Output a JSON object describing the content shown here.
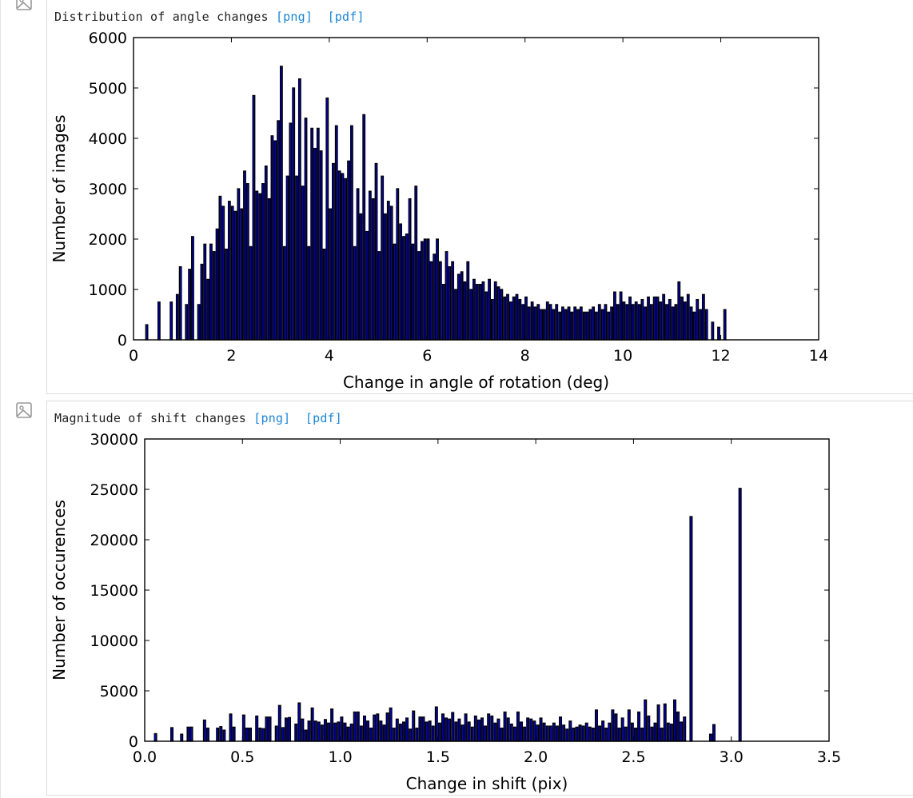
{
  "figures": [
    {
      "caption": "Distribution of angle changes",
      "links": [
        "[png]",
        "[pdf]"
      ]
    },
    {
      "caption": "Magnitude of shift changes",
      "links": [
        "[png]",
        "[pdf]"
      ]
    }
  ],
  "icons": [
    "image-icon",
    "image-icon"
  ],
  "colors": {
    "bar_fill": "#0000cc",
    "bar_edge": "#000000",
    "link": "#1a85d6"
  },
  "chart_data": [
    {
      "type": "bar",
      "title": "",
      "xlabel": "Change in angle of rotation (deg)",
      "ylabel": "Number of images",
      "xlim": [
        0,
        14
      ],
      "ylim": [
        0,
        6000
      ],
      "xticks": [
        0,
        2,
        4,
        6,
        8,
        10,
        12,
        14
      ],
      "yticks": [
        0,
        1000,
        2000,
        3000,
        4000,
        5000,
        6000
      ],
      "bins": {
        "x_start": 0.25,
        "bin_width": 0.0625,
        "values": [
          300,
          0,
          0,
          0,
          750,
          0,
          0,
          0,
          750,
          0,
          900,
          1450,
          0,
          700,
          1400,
          2050,
          0,
          700,
          1500,
          1900,
          1200,
          1900,
          1750,
          2200,
          2850,
          2650,
          1800,
          2750,
          2650,
          2550,
          3000,
          2600,
          3350,
          3100,
          1850,
          4850,
          2950,
          2900,
          3100,
          3450,
          2800,
          4050,
          3950,
          4350,
          5430,
          1850,
          3250,
          4300,
          5000,
          3250,
          5180,
          3050,
          4400,
          1850,
          4200,
          3800,
          4200,
          3750,
          1800,
          4800,
          2600,
          3500,
          4250,
          3350,
          3300,
          3200,
          3550,
          4250,
          1850,
          3000,
          2500,
          4470,
          2150,
          2950,
          2800,
          3500,
          1750,
          3250,
          2500,
          2750,
          2650,
          1900,
          3000,
          2300,
          2050,
          2100,
          2800,
          1900,
          3050,
          1750,
          1950,
          2000,
          2000,
          1550,
          1700,
          2000,
          1550,
          1100,
          1750,
          1450,
          1550,
          1000,
          1300,
          1350,
          1150,
          1550,
          1000,
          1200,
          1100,
          1100,
          1150,
          950,
          1200,
          800,
          1150,
          1050,
          1000,
          850,
          900,
          750,
          850,
          900,
          800,
          700,
          850,
          650,
          750,
          650,
          700,
          600,
          600,
          750,
          700,
          600,
          700,
          550,
          650,
          600,
          650,
          550,
          650,
          600,
          650,
          550,
          550,
          600,
          650,
          550,
          700,
          600,
          700,
          550,
          650,
          950,
          700,
          950,
          750,
          700,
          850,
          700,
          750,
          700,
          800,
          650,
          850,
          700,
          850,
          850,
          750,
          900,
          700,
          800,
          650,
          700,
          1150,
          850,
          750,
          900,
          650,
          550,
          800,
          600,
          900,
          600,
          0,
          350,
          0,
          250,
          0,
          600
        ]
      }
    },
    {
      "type": "bar",
      "title": "",
      "xlabel": "Change in shift (pix)",
      "ylabel": "Number of occurences",
      "xlim": [
        0.0,
        3.5
      ],
      "ylim": [
        0,
        30000
      ],
      "xticks": [
        0.0,
        0.5,
        1.0,
        1.5,
        2.0,
        2.5,
        3.0,
        3.5
      ],
      "xtick_labels": [
        "0.0",
        "0.5",
        "1.0",
        "1.5",
        "2.0",
        "2.5",
        "3.0",
        "3.5"
      ],
      "yticks": [
        0,
        5000,
        10000,
        15000,
        20000,
        25000,
        30000
      ],
      "bins": {
        "x_start": 0.05,
        "bin_width": 0.0167,
        "values": [
          750,
          0,
          0,
          0,
          0,
          1350,
          0,
          0,
          700,
          0,
          1400,
          1400,
          0,
          0,
          0,
          2100,
          1300,
          0,
          0,
          1300,
          1450,
          1100,
          0,
          2700,
          1400,
          0,
          0,
          2600,
          1300,
          1300,
          0,
          2500,
          1300,
          1250,
          2400,
          2400,
          0,
          1500,
          3550,
          1350,
          2300,
          2350,
          0,
          1700,
          3800,
          2200,
          1100,
          2000,
          3300,
          2000,
          1900,
          1600,
          2150,
          1800,
          3200,
          1800,
          1900,
          2400,
          1800,
          1400,
          1700,
          2900,
          2900,
          1500,
          2500,
          2000,
          1300,
          2600,
          2700,
          2000,
          1600,
          2800,
          3300,
          1300,
          2200,
          1700,
          1900,
          2300,
          1200,
          3000,
          1300,
          2400,
          2400,
          1900,
          2000,
          1500,
          3400,
          1800,
          2700,
          2300,
          2200,
          2850,
          1900,
          2200,
          1600,
          2700,
          1900,
          1400,
          2500,
          2100,
          2300,
          1500,
          2700,
          2500,
          1800,
          2200,
          1300,
          2900,
          2300,
          1700,
          1400,
          2900,
          1900,
          1400,
          2300,
          2200,
          2000,
          1600,
          2300,
          1800,
          1500,
          1500,
          1800,
          1500,
          2400,
          1600,
          1200,
          2000,
          1300,
          1400,
          1600,
          1500,
          1800,
          1400,
          1300,
          3100,
          1500,
          2000,
          1300,
          1800,
          3100,
          2700,
          1300,
          2300,
          1400,
          3100,
          1800,
          1300,
          2900,
          1300,
          4100,
          2500,
          1400,
          1800,
          3600,
          1300,
          3700,
          1800,
          1700,
          4100,
          2900,
          1900,
          2400,
          0,
          22300,
          0,
          0,
          0,
          0,
          0,
          700,
          1650,
          0,
          0,
          0,
          0,
          0,
          0,
          0,
          25100
        ]
      }
    }
  ]
}
